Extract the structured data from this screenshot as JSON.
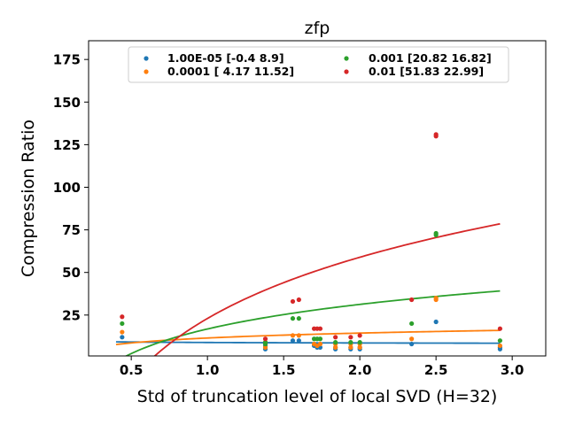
{
  "chart_data": {
    "type": "scatter",
    "title": "zfp",
    "xlabel": "Std of truncation level of local SVD (H=32)",
    "ylabel": "Compression Ratio",
    "xlim": [
      0.22,
      3.22
    ],
    "ylim": [
      1,
      186
    ],
    "xticks": [
      0.5,
      1.0,
      1.5,
      2.0,
      2.5,
      3.0
    ],
    "xtick_labels": [
      "0.5",
      "1.0",
      "1.5",
      "2.0",
      "2.5",
      "3.0"
    ],
    "yticks": [
      25,
      50,
      75,
      100,
      125,
      150,
      175
    ],
    "ytick_labels": [
      "25",
      "50",
      "75",
      "100",
      "125",
      "150",
      "175"
    ],
    "grid": false,
    "legend_position": "top-center",
    "legend_columns": 2,
    "series": [
      {
        "name": "1.00E-05 [-0.4  8.9]",
        "color": "#1f77b4",
        "fit": {
          "a": -0.4,
          "b": 8.9
        },
        "points": [
          [
            0.44,
            12
          ],
          [
            1.38,
            7
          ],
          [
            1.38,
            5
          ],
          [
            1.56,
            10
          ],
          [
            1.6,
            10
          ],
          [
            1.7,
            7
          ],
          [
            1.72,
            6
          ],
          [
            1.74,
            6
          ],
          [
            1.84,
            6
          ],
          [
            1.84,
            5
          ],
          [
            1.94,
            6
          ],
          [
            1.94,
            5
          ],
          [
            2.0,
            6
          ],
          [
            2.0,
            5
          ],
          [
            2.34,
            8
          ],
          [
            2.5,
            21
          ],
          [
            2.92,
            6
          ],
          [
            2.92,
            5
          ]
        ]
      },
      {
        "name": "0.0001 [ 4.17 11.52]",
        "color": "#ff7f0e",
        "fit": {
          "a": 4.17,
          "b": 11.52
        },
        "points": [
          [
            0.44,
            15
          ],
          [
            1.38,
            9
          ],
          [
            1.38,
            6
          ],
          [
            1.56,
            13
          ],
          [
            1.6,
            13
          ],
          [
            1.7,
            8
          ],
          [
            1.72,
            7
          ],
          [
            1.74,
            8
          ],
          [
            1.84,
            8
          ],
          [
            1.84,
            6
          ],
          [
            1.94,
            8
          ],
          [
            1.94,
            6
          ],
          [
            2.0,
            8
          ],
          [
            2.0,
            6
          ],
          [
            2.34,
            11
          ],
          [
            2.5,
            35
          ],
          [
            2.5,
            34
          ],
          [
            2.92,
            7
          ]
        ]
      },
      {
        "name": "0.001 [20.82 16.82]",
        "color": "#2ca02c",
        "fit": {
          "a": 20.82,
          "b": 16.82
        },
        "points": [
          [
            0.44,
            20
          ],
          [
            1.38,
            9
          ],
          [
            1.38,
            8
          ],
          [
            1.56,
            23
          ],
          [
            1.6,
            23
          ],
          [
            1.7,
            11
          ],
          [
            1.72,
            11
          ],
          [
            1.74,
            11
          ],
          [
            1.84,
            9
          ],
          [
            1.94,
            9
          ],
          [
            2.0,
            9
          ],
          [
            2.34,
            20
          ],
          [
            2.5,
            72
          ],
          [
            2.5,
            73
          ],
          [
            2.92,
            10
          ]
        ]
      },
      {
        "name": "0.01 [51.83 22.99]",
        "color": "#d62728",
        "fit": {
          "a": 51.83,
          "b": 22.99
        },
        "points": [
          [
            0.44,
            24
          ],
          [
            1.38,
            11
          ],
          [
            1.56,
            33
          ],
          [
            1.6,
            34
          ],
          [
            1.7,
            17
          ],
          [
            1.72,
            17
          ],
          [
            1.74,
            17
          ],
          [
            1.84,
            12
          ],
          [
            1.94,
            12
          ],
          [
            2.0,
            13
          ],
          [
            2.34,
            34
          ],
          [
            2.5,
            130
          ],
          [
            2.5,
            131
          ],
          [
            2.92,
            17
          ]
        ]
      }
    ],
    "fit_x_range": [
      0.4,
      2.92
    ]
  }
}
